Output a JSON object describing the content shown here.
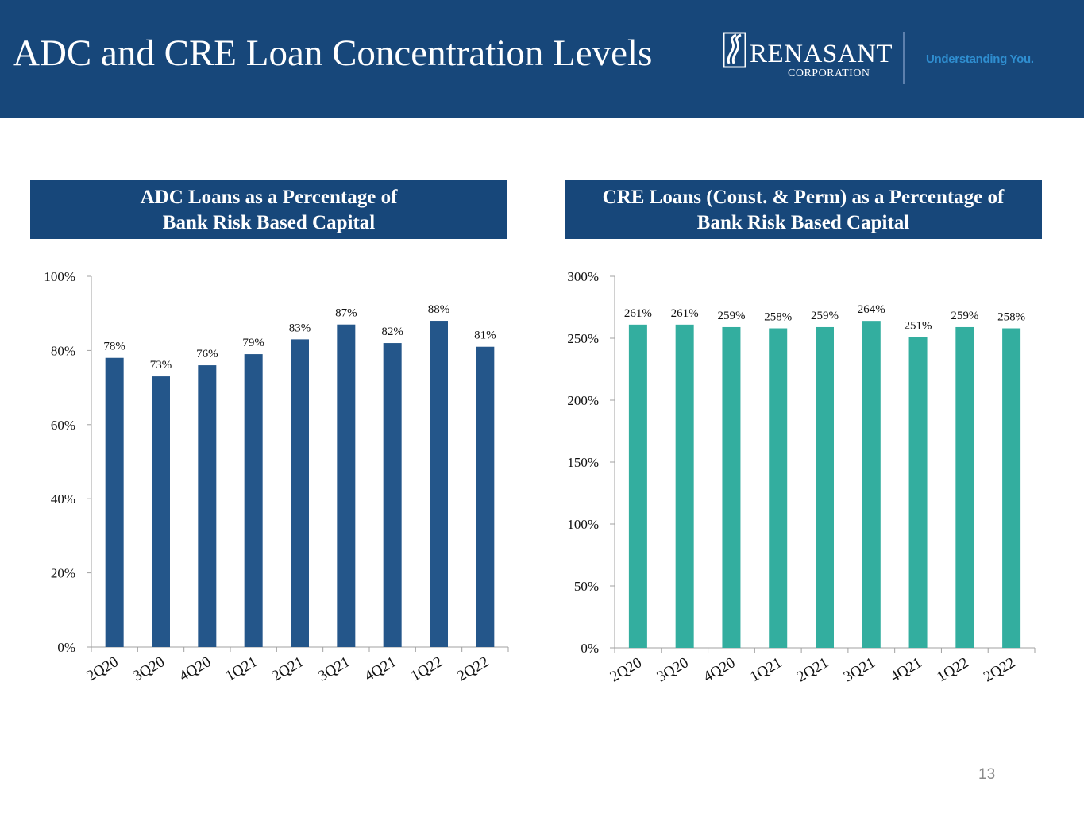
{
  "header": {
    "title": "ADC and CRE Loan Concentration Levels",
    "logo_name": "RENASANT",
    "logo_sub": "CORPORATION",
    "tagline": "Understanding You."
  },
  "panels": {
    "left_title_line1": "ADC Loans as a Percentage of",
    "left_title_line2": "Bank Risk Based Capital",
    "right_title_line1": "CRE Loans (Const. & Perm) as a Percentage of",
    "right_title_line2": "Bank Risk Based Capital"
  },
  "colors": {
    "header_bg": "#17477a",
    "adc_bar": "#24568a",
    "cre_bar": "#33ae9f"
  },
  "chart_data": [
    {
      "type": "bar",
      "title": "ADC Loans as a Percentage of Bank Risk Based Capital",
      "categories": [
        "2Q20",
        "3Q20",
        "4Q20",
        "1Q21",
        "2Q21",
        "3Q21",
        "4Q21",
        "1Q22",
        "2Q22"
      ],
      "values": [
        78,
        73,
        76,
        79,
        83,
        87,
        82,
        88,
        81
      ],
      "data_labels": [
        "78%",
        "73%",
        "76%",
        "79%",
        "83%",
        "87%",
        "82%",
        "88%",
        "81%"
      ],
      "ylim": [
        0,
        100
      ],
      "yticks": [
        0,
        20,
        40,
        60,
        80,
        100
      ],
      "ytick_labels": [
        "0%",
        "20%",
        "40%",
        "60%",
        "80%",
        "100%"
      ],
      "xlabel": "",
      "ylabel": ""
    },
    {
      "type": "bar",
      "title": "CRE Loans (Const. & Perm) as a Percentage of Bank Risk Based Capital",
      "categories": [
        "2Q20",
        "3Q20",
        "4Q20",
        "1Q21",
        "2Q21",
        "3Q21",
        "4Q21",
        "1Q22",
        "2Q22"
      ],
      "values": [
        261,
        261,
        259,
        258,
        259,
        264,
        251,
        259,
        258
      ],
      "data_labels": [
        "261%",
        "261%",
        "259%",
        "258%",
        "259%",
        "264%",
        "251%",
        "259%",
        "258%"
      ],
      "ylim": [
        0,
        300
      ],
      "yticks": [
        0,
        50,
        100,
        150,
        200,
        250,
        300
      ],
      "ytick_labels": [
        "0%",
        "50%",
        "100%",
        "150%",
        "200%",
        "250%",
        "300%"
      ],
      "xlabel": "",
      "ylabel": ""
    }
  ],
  "footer": {
    "page_number": "13"
  }
}
